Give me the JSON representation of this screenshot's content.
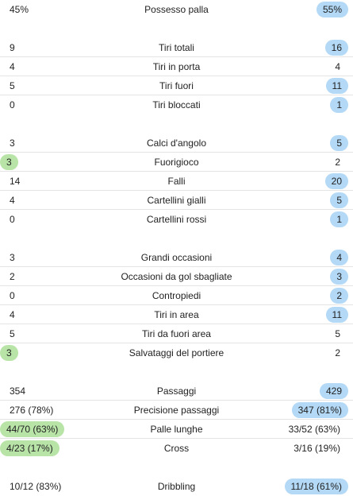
{
  "colors": {
    "home_highlight": "#b9e4a8",
    "away_highlight": "#b3d9f6",
    "row_divider": "#e4e4e4"
  },
  "groups": [
    {
      "rows": [
        {
          "name": "Possesso palla",
          "home": "45%",
          "away": "55%",
          "winner": "away"
        }
      ]
    },
    {
      "rows": [
        {
          "name": "Tiri totali",
          "home": "9",
          "away": "16",
          "winner": "away"
        },
        {
          "name": "Tiri in porta",
          "home": "4",
          "away": "4",
          "winner": "none"
        },
        {
          "name": "Tiri fuori",
          "home": "5",
          "away": "11",
          "winner": "away"
        },
        {
          "name": "Tiri bloccati",
          "home": "0",
          "away": "1",
          "winner": "away"
        }
      ]
    },
    {
      "rows": [
        {
          "name": "Calci d'angolo",
          "home": "3",
          "away": "5",
          "winner": "away"
        },
        {
          "name": "Fuorigioco",
          "home": "3",
          "away": "2",
          "winner": "home"
        },
        {
          "name": "Falli",
          "home": "14",
          "away": "20",
          "winner": "away"
        },
        {
          "name": "Cartellini gialli",
          "home": "4",
          "away": "5",
          "winner": "away"
        },
        {
          "name": "Cartellini rossi",
          "home": "0",
          "away": "1",
          "winner": "away"
        }
      ]
    },
    {
      "rows": [
        {
          "name": "Grandi occasioni",
          "home": "3",
          "away": "4",
          "winner": "away"
        },
        {
          "name": "Occasioni da gol sbagliate",
          "home": "2",
          "away": "3",
          "winner": "away"
        },
        {
          "name": "Contropiedi",
          "home": "0",
          "away": "2",
          "winner": "away"
        },
        {
          "name": "Tiri in area",
          "home": "4",
          "away": "11",
          "winner": "away"
        },
        {
          "name": "Tiri da fuori area",
          "home": "5",
          "away": "5",
          "winner": "none"
        },
        {
          "name": "Salvataggi del portiere",
          "home": "3",
          "away": "2",
          "winner": "home"
        }
      ]
    },
    {
      "rows": [
        {
          "name": "Passaggi",
          "home": "354",
          "away": "429",
          "winner": "away"
        },
        {
          "name": "Precisione passaggi",
          "home": "276 (78%)",
          "away": "347 (81%)",
          "winner": "away"
        },
        {
          "name": "Palle lunghe",
          "home": "44/70 (63%)",
          "away": "33/52 (63%)",
          "winner": "home"
        },
        {
          "name": "Cross",
          "home": "4/23 (17%)",
          "away": "3/16 (19%)",
          "winner": "home"
        }
      ]
    },
    {
      "rows": [
        {
          "name": "Dribbling",
          "home": "10/12 (83%)",
          "away": "11/18 (61%)",
          "winner": "away"
        }
      ]
    }
  ]
}
